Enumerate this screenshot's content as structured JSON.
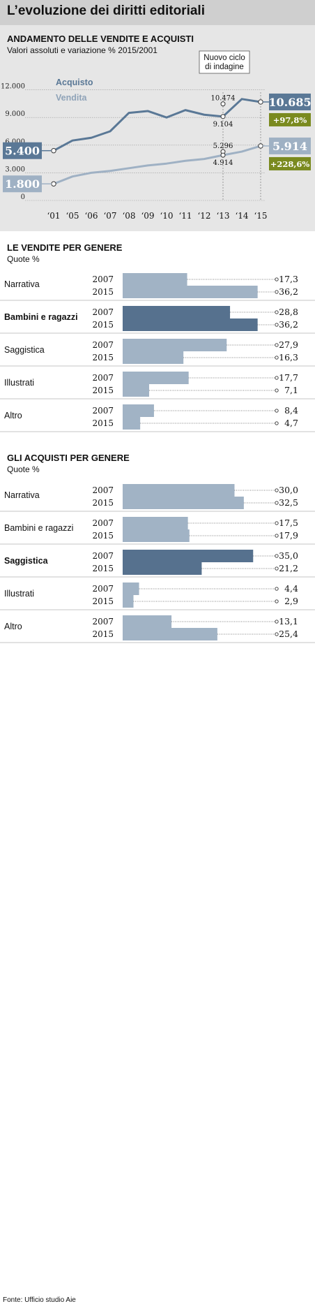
{
  "title": "L’evoluzione dei diritti editoriali",
  "source": "Fonte: Ufficio studio Aie",
  "line_chart": {
    "title": "ANDAMENTO DELLE VENDITE E ACQUISTI",
    "subtitle": "Valori assoluti e variazione % 2015/2001",
    "annotation": [
      "Nuovo ciclo",
      "di indagine"
    ],
    "colors": {
      "acquisto": "#5a7896",
      "vendita": "#9fb1c4",
      "badge_green": "#7a8a1f"
    },
    "chart_data": {
      "type": "line",
      "x": [
        "‘01",
        "‘05",
        "‘06",
        "‘07",
        "‘08",
        "‘09",
        "‘10",
        "‘11",
        "‘12",
        "‘13",
        "‘14",
        "‘15"
      ],
      "y_ticks": [
        "12.000",
        "9.000",
        "6.000",
        "3.000",
        "0"
      ],
      "ylim": [
        0,
        12000
      ],
      "series": [
        {
          "name": "Acquisto",
          "values": [
            5400,
            6500,
            6800,
            7500,
            9500,
            9700,
            9000,
            9800,
            9300,
            9104,
            11000,
            10685
          ],
          "extra_point": {
            "x": "‘13",
            "value": 10474,
            "label": "10.474"
          },
          "point_label": {
            "x": "‘13",
            "label": "9.104"
          },
          "start_label": "5.400",
          "end_label": "10.685",
          "change": "+97,8%"
        },
        {
          "name": "Vendita",
          "values": [
            1800,
            2600,
            3000,
            3200,
            3500,
            3800,
            4000,
            4300,
            4500,
            4914,
            5300,
            5914
          ],
          "extra_point": {
            "x": "‘13",
            "value": 5296,
            "label": "5.296"
          },
          "point_label": {
            "x": "‘13",
            "label": "4.914"
          },
          "start_label": "1.800",
          "end_label": "5.914",
          "change": "+228,6%"
        }
      ]
    }
  },
  "vendite": {
    "title": "LE VENDITE PER GENERE",
    "subtitle": "Quote %",
    "chart_data": {
      "type": "bar",
      "max": 40,
      "highlight": "Bambini e ragazzi",
      "categories": [
        {
          "name": "Narrativa",
          "rows": [
            {
              "year": "2007",
              "value": 17.3,
              "label": "17,3"
            },
            {
              "year": "2015",
              "value": 36.2,
              "label": "36,2"
            }
          ]
        },
        {
          "name": "Bambini e ragazzi",
          "rows": [
            {
              "year": "2007",
              "value": 28.8,
              "label": "28,8"
            },
            {
              "year": "2015",
              "value": 36.2,
              "label": "36,2"
            }
          ]
        },
        {
          "name": "Saggistica",
          "rows": [
            {
              "year": "2007",
              "value": 27.9,
              "label": "27,9"
            },
            {
              "year": "2015",
              "value": 16.3,
              "label": "16,3"
            }
          ]
        },
        {
          "name": "Illustrati",
          "rows": [
            {
              "year": "2007",
              "value": 17.7,
              "label": "17,7"
            },
            {
              "year": "2015",
              "value": 7.1,
              "label": "7,1"
            }
          ]
        },
        {
          "name": "Altro",
          "rows": [
            {
              "year": "2007",
              "value": 8.4,
              "label": "8,4"
            },
            {
              "year": "2015",
              "value": 4.7,
              "label": "4,7"
            }
          ]
        }
      ]
    }
  },
  "acquisti": {
    "title": "GLI ACQUISTI PER GENERE",
    "subtitle": "Quote %",
    "chart_data": {
      "type": "bar",
      "max": 40,
      "highlight": "Saggistica",
      "categories": [
        {
          "name": "Narrativa",
          "rows": [
            {
              "year": "2007",
              "value": 30.0,
              "label": "30,0"
            },
            {
              "year": "2015",
              "value": 32.5,
              "label": "32,5"
            }
          ]
        },
        {
          "name": "Bambini e ragazzi",
          "rows": [
            {
              "year": "2007",
              "value": 17.5,
              "label": "17,5"
            },
            {
              "year": "2015",
              "value": 17.9,
              "label": "17,9"
            }
          ]
        },
        {
          "name": "Saggistica",
          "rows": [
            {
              "year": "2007",
              "value": 35.0,
              "label": "35,0"
            },
            {
              "year": "2015",
              "value": 21.2,
              "label": "21,2"
            }
          ]
        },
        {
          "name": "Illustrati",
          "rows": [
            {
              "year": "2007",
              "value": 4.4,
              "label": "4,4"
            },
            {
              "year": "2015",
              "value": 2.9,
              "label": "2,9"
            }
          ]
        },
        {
          "name": "Altro",
          "rows": [
            {
              "year": "2007",
              "value": 13.1,
              "label": "13,1"
            },
            {
              "year": "2015",
              "value": 25.4,
              "label": "25,4"
            }
          ]
        }
      ]
    }
  }
}
